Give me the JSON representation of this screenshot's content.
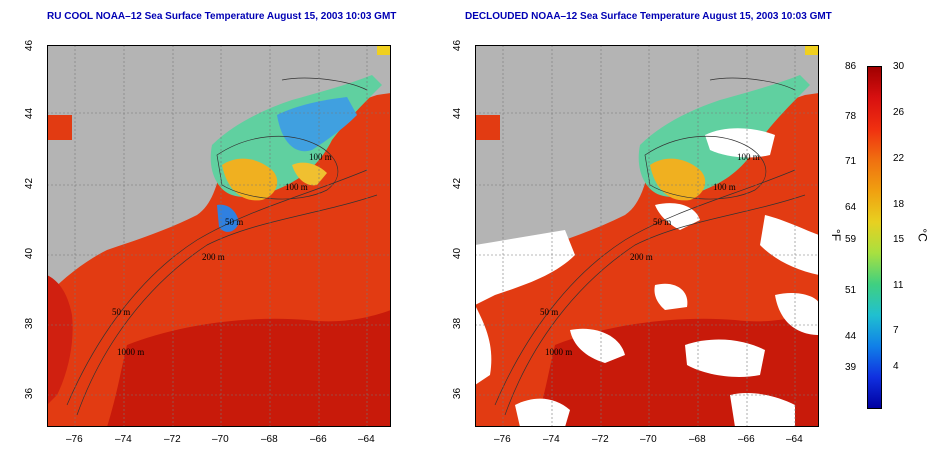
{
  "left_title": "RU COOL NOAA–12 Sea Surface Temperature August 15, 2003 10:03 GMT",
  "right_title": "DECLOUDED NOAA–12 Sea Surface Temperature August 15, 2003 10:03 GMT",
  "lat_ticks": [
    "46",
    "44",
    "42",
    "40",
    "38",
    "36"
  ],
  "lon_ticks": [
    "–76",
    "–74",
    "–72",
    "–70",
    "–68",
    "–66",
    "–64"
  ],
  "contour_labels": {
    "left": [
      "100 m",
      "100 m",
      "50 m",
      "200 m",
      "50 m",
      "1000 m"
    ],
    "right": [
      "100 m",
      "100 m",
      "50 m",
      "200 m",
      "50 m",
      "1000 m"
    ]
  },
  "colorbar": {
    "fahrenheit_ticks": [
      "86",
      "78",
      "71",
      "64",
      "59",
      "51",
      "44",
      "39"
    ],
    "celsius_ticks": [
      "30",
      "26",
      "22",
      "18",
      "15",
      "11",
      "7",
      "4"
    ],
    "fahrenheit_unit": "°F",
    "celsius_unit": "°C",
    "colors": [
      "#a00000",
      "#d81010",
      "#f03010",
      "#f07010",
      "#f0a010",
      "#e8d020",
      "#a8e040",
      "#40d080",
      "#20c0d0",
      "#1080e8",
      "#1030e0",
      "#0000a0"
    ]
  },
  "colors": {
    "land": "#b4b4b4",
    "warm": "#e23b12",
    "deep_warm": "#c81a0a",
    "cool": "#50c8d0",
    "cloud": "#ffffff",
    "title": "#0000b4"
  }
}
